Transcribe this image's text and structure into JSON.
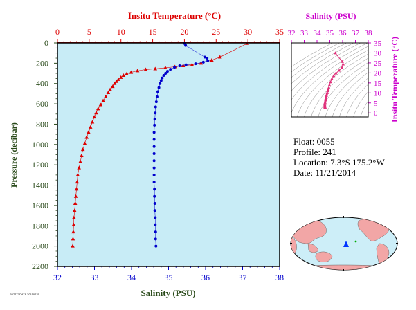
{
  "colors": {
    "temperature": "#dd0000",
    "salinity_main": "#0000cc",
    "salinity_inset": "#cc00cc",
    "axis_green": "#2a4a1a",
    "plot_bg": "#c8ecf6"
  },
  "info": {
    "float_label": "Float:",
    "float_value": "0055",
    "profile_label": "Profile:",
    "profile_value": "241",
    "location_label": "Location:",
    "location_value": "7.3°S 175.2°W",
    "date_label": "Date:",
    "date_value": "11/21/2014"
  },
  "footer_text": "P4777ZDATA 20150276",
  "chart_data": [
    {
      "type": "scatter",
      "title": "",
      "top_axis_label": "Insitu Temperature (°C)",
      "top_axis_ticks": [
        "0",
        "5",
        "10",
        "15",
        "20",
        "25",
        "30",
        "35"
      ],
      "top_axis_range": [
        0,
        35
      ],
      "bottom_axis_label": "Salinity (PSU)",
      "bottom_axis_ticks": [
        "32",
        "33",
        "34",
        "35",
        "36",
        "37",
        "38"
      ],
      "bottom_axis_range": [
        32,
        38
      ],
      "ylabel": "Pressure (decibar)",
      "y_ticks": [
        "0",
        "200",
        "400",
        "600",
        "800",
        "1000",
        "1200",
        "1400",
        "1600",
        "1800",
        "2000",
        "2200"
      ],
      "ylim": [
        0,
        2200
      ],
      "y_inverted": true,
      "series": [
        {
          "kind": "temperature",
          "marker": "triangle",
          "points": [
            [
              29.9,
              5
            ],
            [
              25.6,
              140
            ],
            [
              24.3,
              170
            ],
            [
              22.6,
              200
            ],
            [
              21.2,
              215
            ],
            [
              19.8,
              225
            ],
            [
              18.5,
              235
            ],
            [
              17.0,
              245
            ],
            [
              15.4,
              255
            ],
            [
              13.9,
              262
            ],
            [
              12.6,
              275
            ],
            [
              11.6,
              290
            ],
            [
              10.9,
              305
            ],
            [
              10.4,
              320
            ],
            [
              10.0,
              340
            ],
            [
              9.6,
              360
            ],
            [
              9.3,
              380
            ],
            [
              9.0,
              400
            ],
            [
              8.7,
              430
            ],
            [
              8.3,
              460
            ],
            [
              8.0,
              490
            ],
            [
              7.6,
              530
            ],
            [
              7.2,
              570
            ],
            [
              6.8,
              610
            ],
            [
              6.4,
              650
            ],
            [
              6.1,
              690
            ],
            [
              5.8,
              730
            ],
            [
              5.5,
              780
            ],
            [
              5.2,
              830
            ],
            [
              4.9,
              880
            ],
            [
              4.6,
              930
            ],
            [
              4.3,
              990
            ],
            [
              4.0,
              1050
            ],
            [
              3.8,
              1110
            ],
            [
              3.6,
              1170
            ],
            [
              3.4,
              1230
            ],
            [
              3.2,
              1300
            ],
            [
              3.1,
              1370
            ],
            [
              3.0,
              1440
            ],
            [
              2.9,
              1510
            ],
            [
              2.8,
              1580
            ],
            [
              2.7,
              1650
            ],
            [
              2.6,
              1720
            ],
            [
              2.55,
              1790
            ],
            [
              2.5,
              1860
            ],
            [
              2.45,
              1930
            ],
            [
              2.4,
              2000
            ]
          ]
        },
        {
          "kind": "salinity",
          "marker": "circle",
          "points": [
            [
              35.43,
              5
            ],
            [
              35.46,
              25
            ],
            [
              35.98,
              140
            ],
            [
              36.04,
              150
            ],
            [
              36.06,
              175
            ],
            [
              35.94,
              190
            ],
            [
              35.73,
              205
            ],
            [
              35.47,
              215
            ],
            [
              35.3,
              225
            ],
            [
              35.16,
              240
            ],
            [
              35.05,
              260
            ],
            [
              34.97,
              280
            ],
            [
              34.92,
              300
            ],
            [
              34.87,
              320
            ],
            [
              34.83,
              345
            ],
            [
              34.8,
              370
            ],
            [
              34.77,
              400
            ],
            [
              34.74,
              440
            ],
            [
              34.71,
              480
            ],
            [
              34.69,
              530
            ],
            [
              34.67,
              580
            ],
            [
              34.65,
              630
            ],
            [
              34.64,
              690
            ],
            [
              34.63,
              750
            ],
            [
              34.62,
              810
            ],
            [
              34.61,
              880
            ],
            [
              34.61,
              950
            ],
            [
              34.61,
              1020
            ],
            [
              34.61,
              1090
            ],
            [
              34.61,
              1160
            ],
            [
              34.61,
              1230
            ],
            [
              34.61,
              1300
            ],
            [
              34.61,
              1370
            ],
            [
              34.62,
              1440
            ],
            [
              34.62,
              1510
            ],
            [
              34.63,
              1580
            ],
            [
              34.63,
              1650
            ],
            [
              34.64,
              1720
            ],
            [
              34.64,
              1790
            ],
            [
              34.65,
              1860
            ],
            [
              34.65,
              1930
            ],
            [
              34.66,
              2000
            ]
          ]
        }
      ]
    },
    {
      "type": "scatter",
      "title": "",
      "top_axis_label": "Salinity (PSU)",
      "x_ticks": [
        "32",
        "33",
        "34",
        "35",
        "36",
        "37",
        "38"
      ],
      "xlim": [
        32,
        38
      ],
      "right_axis_label": "Insitu Temperature (°C)",
      "y_ticks": [
        "0",
        "5",
        "10",
        "15",
        "20",
        "25",
        "30",
        "35"
      ],
      "ylim": [
        -2,
        35
      ],
      "density_contours": true,
      "series": [
        {
          "kind": "t-s",
          "marker": "triangle",
          "points": [
            [
              35.43,
              29.9
            ],
            [
              35.98,
              25.6
            ],
            [
              36.04,
              24.3
            ],
            [
              35.94,
              22.6
            ],
            [
              35.73,
              21.2
            ],
            [
              35.47,
              19.8
            ],
            [
              35.3,
              18.5
            ],
            [
              35.16,
              17.0
            ],
            [
              35.05,
              15.4
            ],
            [
              34.97,
              13.9
            ],
            [
              34.92,
              12.6
            ],
            [
              34.87,
              11.6
            ],
            [
              34.83,
              10.9
            ],
            [
              34.8,
              10.0
            ],
            [
              34.77,
              9.3
            ],
            [
              34.74,
              8.7
            ],
            [
              34.71,
              8.0
            ],
            [
              34.69,
              7.2
            ],
            [
              34.67,
              6.4
            ],
            [
              34.65,
              5.8
            ],
            [
              34.63,
              5.2
            ],
            [
              34.62,
              4.6
            ],
            [
              34.61,
              4.0
            ],
            [
              34.61,
              3.6
            ],
            [
              34.61,
              3.2
            ],
            [
              34.62,
              2.9
            ],
            [
              34.63,
              2.7
            ],
            [
              34.64,
              2.5
            ],
            [
              34.66,
              2.4
            ]
          ]
        }
      ]
    }
  ],
  "map": {
    "float_marker": "float-position"
  }
}
